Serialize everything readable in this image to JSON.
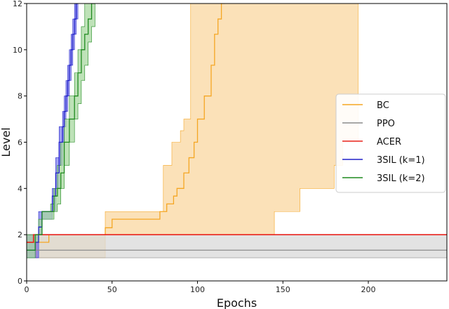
{
  "chart_data": {
    "type": "line",
    "xlabel": "Epochs",
    "ylabel": "Level",
    "xlim": [
      0,
      246
    ],
    "ylim": [
      0,
      12
    ],
    "xticks": [
      0,
      50,
      100,
      150,
      200
    ],
    "yticks": [
      0,
      2,
      4,
      6,
      8,
      10,
      12
    ],
    "legend_position": "center-right",
    "series": [
      {
        "name": "BC",
        "color": "#f5a623",
        "fill": "#fad7a0",
        "x": [
          0,
          13,
          13,
          45,
          46,
          50,
          60,
          70,
          74,
          78,
          82,
          86,
          88,
          92,
          95,
          98,
          100,
          104,
          108,
          110,
          112,
          114,
          116
        ],
        "y": [
          1.67,
          1.67,
          2,
          2,
          2.3,
          2.67,
          2.67,
          2.67,
          2.67,
          3,
          3.33,
          3.67,
          4,
          4.67,
          5.33,
          6,
          7,
          8,
          9.33,
          10.67,
          11.33,
          12,
          12
        ],
        "lower": [
          1,
          1,
          1,
          1,
          2,
          2,
          2,
          2,
          2,
          2,
          2,
          2,
          2,
          2,
          2,
          2,
          2,
          2,
          2,
          2,
          2,
          2,
          2
        ],
        "upper": [
          2,
          2,
          2,
          2,
          3,
          3,
          3,
          3,
          3,
          3.5,
          4,
          4.67,
          5,
          5.67,
          6.67,
          8,
          9,
          10,
          11,
          12,
          12,
          12,
          12
        ],
        "x_band": [
          0,
          13,
          45,
          46,
          75,
          80,
          85,
          90,
          92,
          96,
          96,
          140,
          145,
          155,
          160,
          170,
          180,
          185,
          188,
          192,
          194
        ],
        "band_lower": [
          1,
          1,
          1,
          2,
          2,
          2,
          2,
          2,
          2,
          2,
          2,
          2,
          3,
          3,
          4,
          4,
          5,
          6,
          6,
          6,
          6
        ],
        "band_upper": [
          2,
          2,
          2,
          3,
          3,
          5,
          6,
          6.5,
          7,
          8,
          12,
          12,
          12,
          12,
          12,
          12,
          12,
          12,
          12,
          12,
          12
        ]
      },
      {
        "name": "PPO",
        "color": "#8c8c8c",
        "fill": "#d9d9d9",
        "x": [
          0,
          246
        ],
        "y": [
          1.33,
          1.33
        ],
        "lower": [
          1,
          1
        ],
        "upper": [
          2,
          2
        ]
      },
      {
        "name": "ACER",
        "color": "#e8231d",
        "fill": "#f4a3a0",
        "x": [
          0,
          3,
          4,
          6,
          246
        ],
        "y": [
          1.67,
          1.67,
          2,
          2,
          2
        ],
        "lower": [
          1,
          1,
          1,
          2,
          2
        ],
        "upper": [
          2,
          2,
          2,
          2,
          2
        ]
      },
      {
        "name": "3SIL (k=1)",
        "color": "#2020c8",
        "fill": "#8080ee",
        "x": [
          0,
          5,
          7,
          9,
          12,
          15,
          17,
          19,
          21,
          22,
          23,
          24,
          25,
          26,
          27,
          28,
          29,
          30
        ],
        "y": [
          1.33,
          1.67,
          2.33,
          3,
          3,
          3.67,
          4.67,
          6,
          6.67,
          7.33,
          8,
          8.67,
          9.33,
          10,
          10.67,
          11.33,
          12,
          12
        ],
        "lower": [
          1,
          1,
          2,
          2.67,
          2.67,
          3,
          4,
          5,
          6,
          6.67,
          7.33,
          8,
          8.67,
          9.33,
          10,
          10.67,
          11.33,
          12
        ],
        "upper": [
          2,
          2,
          3,
          3,
          3,
          4,
          5.33,
          6.67,
          7.33,
          8,
          8.67,
          9.33,
          10,
          10.67,
          11.33,
          12,
          12,
          12
        ]
      },
      {
        "name": "3SIL (k=2)",
        "color": "#1f8a1f",
        "fill": "#a8d8a0",
        "x": [
          0,
          5,
          7,
          9,
          12,
          14,
          16,
          18,
          20,
          22,
          25,
          28,
          30,
          32,
          34,
          36,
          38,
          40
        ],
        "y": [
          1.33,
          2,
          2,
          3,
          3,
          3,
          3.67,
          4,
          4.67,
          6,
          7,
          8,
          9,
          10,
          10.67,
          11.33,
          12,
          12
        ],
        "lower": [
          1,
          1.67,
          2,
          2.67,
          2.67,
          2.67,
          3,
          3.33,
          4,
          5,
          6,
          7,
          7.67,
          8.67,
          9.33,
          10.33,
          11,
          12
        ],
        "upper": [
          2,
          2,
          2.67,
          3,
          3,
          3.33,
          4,
          5,
          6,
          7,
          8,
          9,
          10,
          11,
          12,
          12,
          12,
          12
        ]
      }
    ]
  }
}
